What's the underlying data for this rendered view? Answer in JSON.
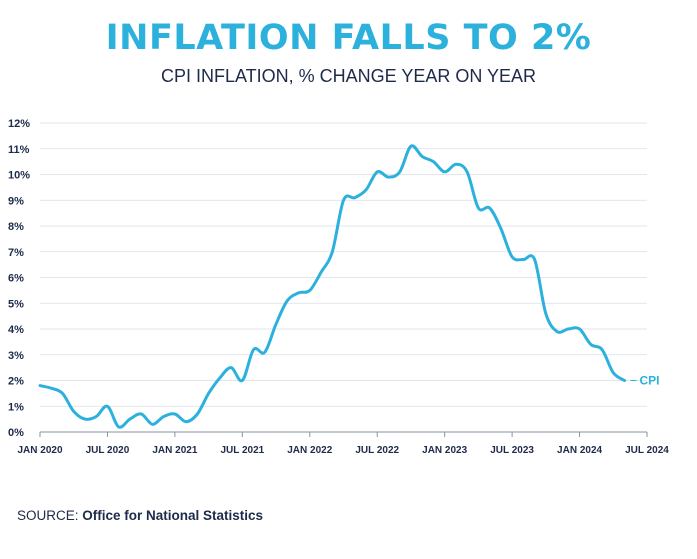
{
  "header": {
    "title": "INFLATION FALLS TO 2%",
    "subtitle": "CPI INFLATION, % CHANGE YEAR ON YEAR"
  },
  "footer": {
    "source_prefix": "SOURCE:",
    "source_name": "Office for National Statistics"
  },
  "colors": {
    "series": "#2bb1dc",
    "text": "#1d2a4a",
    "grid": "#d9dde3"
  },
  "chart_data": {
    "type": "line",
    "title": "INFLATION FALLS TO 2%",
    "subtitle": "CPI INFLATION, % CHANGE YEAR ON YEAR",
    "xlabel": "",
    "ylabel": "",
    "ylim": [
      0,
      12
    ],
    "yticks": [
      0,
      1,
      2,
      3,
      4,
      5,
      6,
      7,
      8,
      9,
      10,
      11,
      12
    ],
    "ytick_labels": [
      "0%",
      "1%",
      "2%",
      "3%",
      "4%",
      "5%",
      "6%",
      "7%",
      "8%",
      "9%",
      "10%",
      "11%",
      "12%"
    ],
    "xtick_labels": [
      "JAN 2020",
      "JUL 2020",
      "JAN 2021",
      "JUL 2021",
      "JAN 2022",
      "JUL 2022",
      "JAN 2023",
      "JUL 2023",
      "JAN 2024",
      "JUL 2024"
    ],
    "grid": true,
    "legend": "end-of-line label",
    "series": [
      {
        "name": "CPI",
        "x": [
          "2020-01",
          "2020-02",
          "2020-03",
          "2020-04",
          "2020-05",
          "2020-06",
          "2020-07",
          "2020-08",
          "2020-09",
          "2020-10",
          "2020-11",
          "2020-12",
          "2021-01",
          "2021-02",
          "2021-03",
          "2021-04",
          "2021-05",
          "2021-06",
          "2021-07",
          "2021-08",
          "2021-09",
          "2021-10",
          "2021-11",
          "2021-12",
          "2022-01",
          "2022-02",
          "2022-03",
          "2022-04",
          "2022-05",
          "2022-06",
          "2022-07",
          "2022-08",
          "2022-09",
          "2022-10",
          "2022-11",
          "2022-12",
          "2023-01",
          "2023-02",
          "2023-03",
          "2023-04",
          "2023-05",
          "2023-06",
          "2023-07",
          "2023-08",
          "2023-09",
          "2023-10",
          "2023-11",
          "2023-12",
          "2024-01",
          "2024-02",
          "2024-03",
          "2024-04",
          "2024-05"
        ],
        "values": [
          1.8,
          1.7,
          1.5,
          0.8,
          0.5,
          0.6,
          1.0,
          0.2,
          0.5,
          0.7,
          0.3,
          0.6,
          0.7,
          0.4,
          0.7,
          1.5,
          2.1,
          2.5,
          2.0,
          3.2,
          3.1,
          4.2,
          5.1,
          5.4,
          5.5,
          6.2,
          7.0,
          9.0,
          9.1,
          9.4,
          10.1,
          9.9,
          10.1,
          11.1,
          10.7,
          10.5,
          10.1,
          10.4,
          10.1,
          8.7,
          8.7,
          7.9,
          6.8,
          6.7,
          6.7,
          4.6,
          3.9,
          4.0,
          4.0,
          3.4,
          3.2,
          2.3,
          2.0
        ]
      }
    ]
  }
}
